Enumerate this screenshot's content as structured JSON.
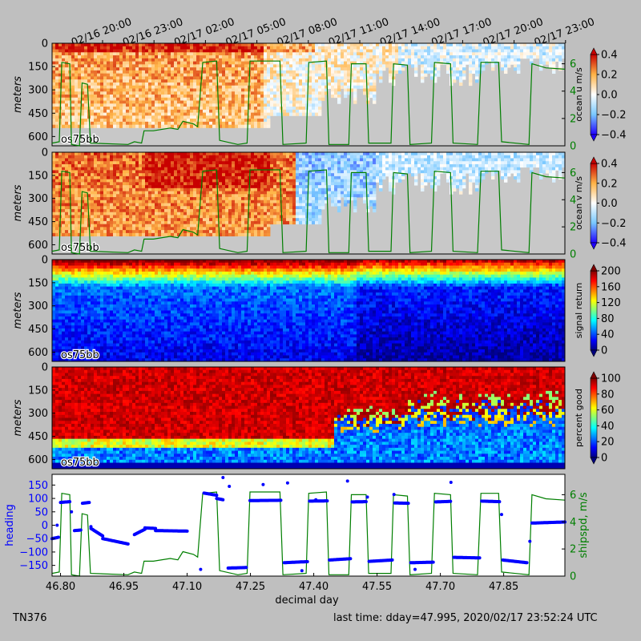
{
  "footer": {
    "cruise_id": "TN376",
    "last_time": "last time: dday=47.995,  2020/02/17 23:52:24 UTC"
  },
  "colors": {
    "background": "#bfbfbf",
    "nodata": "#c8c8c8",
    "shipspd": "#007f00",
    "heading": "#0000ff"
  },
  "time_axis": {
    "top_ticks": [
      "02/16 20:00",
      "02/16 23:00",
      "02/17 02:00",
      "02/17 05:00",
      "02/17 08:00",
      "02/17 11:00",
      "02/17 14:00",
      "02/17 17:00",
      "02/17 20:00",
      "02/17 23:00"
    ],
    "bottom_ticks": [
      "46.80",
      "46.95",
      "47.10",
      "47.25",
      "47.40",
      "47.55",
      "47.70",
      "47.85"
    ],
    "xlabel": "decimal day"
  },
  "chart_data": [
    {
      "type": "heatmap",
      "panel": "ocean-u",
      "ylabel": "meters",
      "y_ticks": [
        "0",
        "150",
        "300",
        "450",
        "600"
      ],
      "ylim": [
        660,
        0
      ],
      "instrument_label": "os75bb",
      "colorbar": {
        "label": "ocean u m/s",
        "ticks": [
          "0.4",
          "0.2",
          "0.0",
          "−0.2",
          "−0.4"
        ],
        "range": [
          -0.4,
          0.4
        ],
        "colormap": "blue-white-red"
      },
      "overlay": {
        "name": "shipspd",
        "axis_ticks": [
          "0",
          "2",
          "4",
          "6"
        ],
        "ylim": [
          0,
          7.5
        ]
      }
    },
    {
      "type": "heatmap",
      "panel": "ocean-v",
      "ylabel": "meters",
      "y_ticks": [
        "0",
        "150",
        "300",
        "450",
        "600"
      ],
      "ylim": [
        660,
        0
      ],
      "instrument_label": "os75bb",
      "colorbar": {
        "label": "ocean v m/s",
        "ticks": [
          "0.4",
          "0.2",
          "0.0",
          "−0.2",
          "−0.4"
        ],
        "range": [
          -0.4,
          0.4
        ],
        "colormap": "blue-white-red"
      },
      "overlay": {
        "name": "shipspd",
        "axis_ticks": [
          "0",
          "2",
          "4",
          "6"
        ],
        "ylim": [
          0,
          7.5
        ]
      }
    },
    {
      "type": "heatmap",
      "panel": "signal-return",
      "ylabel": "meters",
      "y_ticks": [
        "0",
        "150",
        "300",
        "450",
        "600"
      ],
      "ylim": [
        660,
        0
      ],
      "instrument_label": "os75bb",
      "colorbar": {
        "label": "signal return",
        "ticks": [
          "200",
          "160",
          "120",
          "80",
          "40",
          "0"
        ],
        "range": [
          0,
          200
        ],
        "colormap": "jet"
      }
    },
    {
      "type": "heatmap",
      "panel": "percent-good",
      "ylabel": "meters",
      "y_ticks": [
        "0",
        "150",
        "300",
        "450",
        "600"
      ],
      "ylim": [
        660,
        0
      ],
      "instrument_label": "os75bb",
      "colorbar": {
        "label": "percent good",
        "ticks": [
          "100",
          "80",
          "60",
          "40",
          "20",
          "0"
        ],
        "range": [
          0,
          100
        ],
        "colormap": "jet"
      }
    },
    {
      "type": "scatter",
      "panel": "heading-shipspd",
      "ylabel_left": "heading",
      "ylabel_right": "shipspd, m/s",
      "left_ticks": [
        "150",
        "100",
        "50",
        "0",
        "−50",
        "−100",
        "−150"
      ],
      "right_ticks": [
        "6",
        "4",
        "2",
        "0"
      ],
      "ylim_left": [
        -190,
        190
      ],
      "ylim_right": [
        0,
        7.5
      ],
      "xlim": [
        46.78,
        47.995
      ],
      "shipspd_series": [
        [
          46.78,
          0.2
        ],
        [
          46.797,
          0.3
        ],
        [
          46.803,
          6.1
        ],
        [
          46.822,
          6.0
        ],
        [
          46.826,
          0.1
        ],
        [
          46.845,
          0.0
        ],
        [
          46.851,
          4.6
        ],
        [
          46.864,
          4.5
        ],
        [
          46.871,
          0.2
        ],
        [
          46.96,
          0.1
        ],
        [
          46.975,
          0.3
        ],
        [
          46.992,
          0.2
        ],
        [
          46.998,
          1.1
        ],
        [
          47.02,
          1.1
        ],
        [
          47.06,
          1.3
        ],
        [
          47.078,
          1.2
        ],
        [
          47.09,
          1.8
        ],
        [
          47.115,
          1.6
        ],
        [
          47.125,
          1.4
        ],
        [
          47.137,
          6.1
        ],
        [
          47.17,
          6.2
        ],
        [
          47.177,
          0.4
        ],
        [
          47.22,
          0.1
        ],
        [
          47.242,
          0.2
        ],
        [
          47.249,
          6.2
        ],
        [
          47.32,
          6.2
        ],
        [
          47.327,
          0.1
        ],
        [
          47.382,
          0.2
        ],
        [
          47.388,
          6.1
        ],
        [
          47.43,
          6.2
        ],
        [
          47.436,
          0.1
        ],
        [
          47.483,
          0.1
        ],
        [
          47.489,
          6.0
        ],
        [
          47.524,
          6.0
        ],
        [
          47.53,
          0.2
        ],
        [
          47.583,
          0.2
        ],
        [
          47.589,
          6.0
        ],
        [
          47.622,
          5.9
        ],
        [
          47.628,
          0.1
        ],
        [
          47.679,
          0.2
        ],
        [
          47.686,
          6.1
        ],
        [
          47.724,
          6.0
        ],
        [
          47.73,
          0.2
        ],
        [
          47.788,
          0.1
        ],
        [
          47.796,
          6.1
        ],
        [
          47.838,
          6.1
        ],
        [
          47.845,
          0.3
        ],
        [
          47.91,
          0.1
        ],
        [
          47.917,
          6.0
        ],
        [
          47.95,
          5.7
        ],
        [
          47.995,
          5.6
        ]
      ],
      "heading_segments": [
        [
          46.78,
          46.795,
          -50,
          -45
        ],
        [
          46.8,
          46.822,
          85,
          88
        ],
        [
          46.833,
          46.848,
          -20,
          -18
        ],
        [
          46.852,
          46.868,
          82,
          85
        ],
        [
          46.872,
          46.9,
          -12,
          -40
        ],
        [
          46.9,
          46.96,
          -50,
          -70
        ],
        [
          46.975,
          47.0,
          -35,
          -15
        ],
        [
          47.0,
          47.025,
          -10,
          -12
        ],
        [
          47.025,
          47.1,
          -20,
          -22
        ],
        [
          47.14,
          47.17,
          120,
          112
        ],
        [
          47.17,
          47.185,
          100,
          95
        ],
        [
          47.197,
          47.24,
          -160,
          -158
        ],
        [
          47.249,
          47.322,
          92,
          93
        ],
        [
          47.33,
          47.385,
          -140,
          -136
        ],
        [
          47.39,
          47.432,
          90,
          91
        ],
        [
          47.437,
          47.487,
          -130,
          -125
        ],
        [
          47.491,
          47.524,
          87,
          88
        ],
        [
          47.531,
          47.586,
          -135,
          -130
        ],
        [
          47.592,
          47.624,
          83,
          82
        ],
        [
          47.63,
          47.683,
          -140,
          -138
        ],
        [
          47.689,
          47.724,
          87,
          89
        ],
        [
          47.732,
          47.793,
          -120,
          -122
        ],
        [
          47.798,
          47.84,
          90,
          88
        ],
        [
          47.848,
          47.905,
          -130,
          -140
        ],
        [
          47.917,
          47.995,
          8,
          12
        ]
      ],
      "heading_outliers": [
        [
          46.792,
          0
        ],
        [
          46.826,
          50
        ],
        [
          46.872,
          -5
        ],
        [
          47.132,
          -165
        ],
        [
          47.185,
          178
        ],
        [
          47.2,
          145
        ],
        [
          47.28,
          152
        ],
        [
          47.338,
          158
        ],
        [
          47.372,
          -170
        ],
        [
          47.405,
          95
        ],
        [
          47.48,
          165
        ],
        [
          47.527,
          105
        ],
        [
          47.59,
          115
        ],
        [
          47.64,
          -165
        ],
        [
          47.725,
          160
        ],
        [
          47.845,
          40
        ],
        [
          47.912,
          -60
        ]
      ]
    }
  ]
}
